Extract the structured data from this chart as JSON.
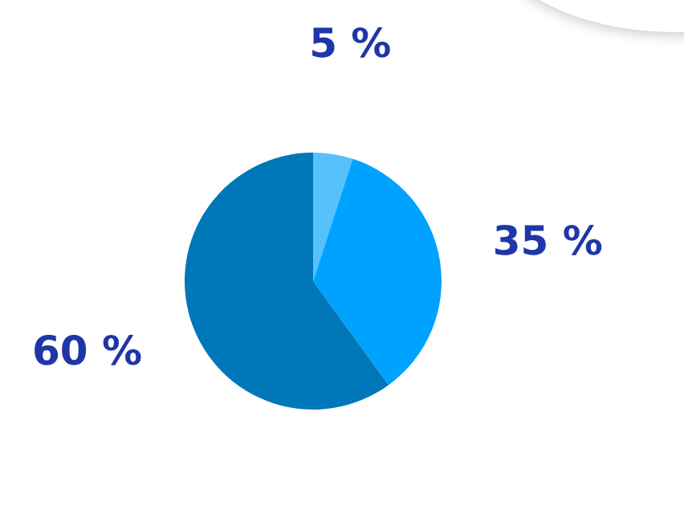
{
  "chart_data": {
    "type": "pie",
    "categories": [
      null,
      null,
      null
    ],
    "values": [
      5,
      35,
      60
    ],
    "colors": [
      "#57c1fc",
      "#00a2ff",
      "#0077b9"
    ],
    "value_labels": [
      "5 %",
      "35 %",
      "60 %"
    ],
    "legend": false
  }
}
